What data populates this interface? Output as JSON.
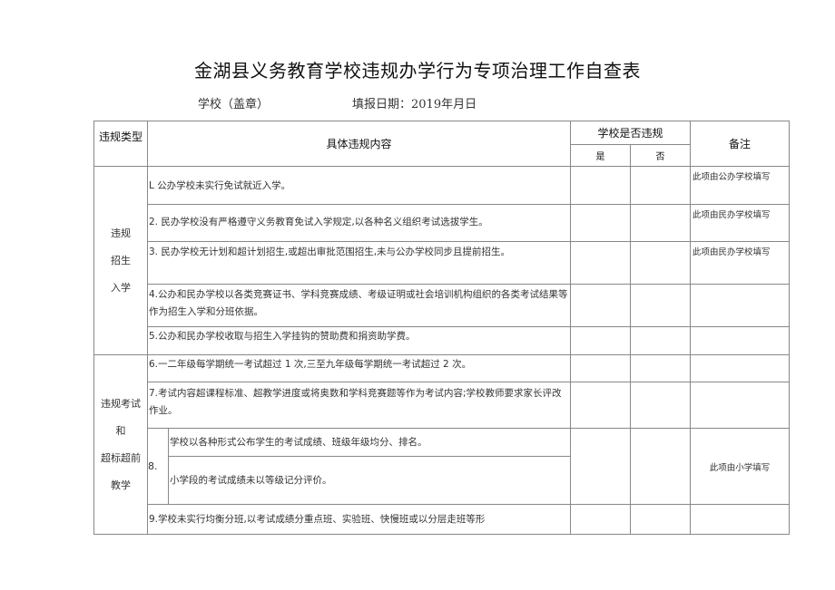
{
  "title": "金湖县义务教育学校违规办学行为专项治理工作自查表",
  "school_label": "学校（盖章）",
  "date_label": "填报日期：2019年月日",
  "headers": {
    "type": "违规类型",
    "content": "具体违规内容",
    "violated": "学校是否违规",
    "yes": "是",
    "no": "否",
    "note": "备注"
  },
  "groups": [
    {
      "type": "违规\n招生\n入学"
    },
    {
      "type": "违规考试\n和\n超标超前\n教学"
    }
  ],
  "rows": [
    {
      "content": "L 公办学校未实行免试就近入学。",
      "note": "此项由公办学校填写"
    },
    {
      "content": "2. 民办学校没有严格遵守义务教育免试入学规定,以各种名义组织考试选拔学生。",
      "note": "此项由民办学校填写"
    },
    {
      "content": "3. 民办学校无计划和超计划招生,或超出审批范围招生,未与公办学校同步且提前招生。",
      "note": "此项由民办学校填写"
    },
    {
      "content": "4.公办和民办学校以各类竞赛证书、学科竞赛成绩、考级证明或社会培训机构组织的各类考试结果等作为招生入学和分班依据。",
      "note": ""
    },
    {
      "content": "5.公办和民办学校收取与招生入学挂钩的赞助费和捐资助学费。",
      "note": ""
    },
    {
      "content": "6.一二年级每学期统一考试超过 1 次,三至九年级每学期统一考试超过 2 次。",
      "note": ""
    },
    {
      "content": "7.考试内容超课程标准、超教学进度或将奥数和学科竞赛题等作为考试内容;学校教师要求家长评改作业。",
      "note": ""
    },
    {
      "num": "8.",
      "content_a": "学校以各种形式公布学生的考试成绩、班级年级均分、排名。",
      "content_b": "小学段的考试成绩未以等级记分评价。",
      "note": "此项由小学填写"
    },
    {
      "content": "9.学校未实行均衡分班,以考试成绩分重点班、实验班、快慢班或以分层走班等形",
      "note": ""
    }
  ]
}
